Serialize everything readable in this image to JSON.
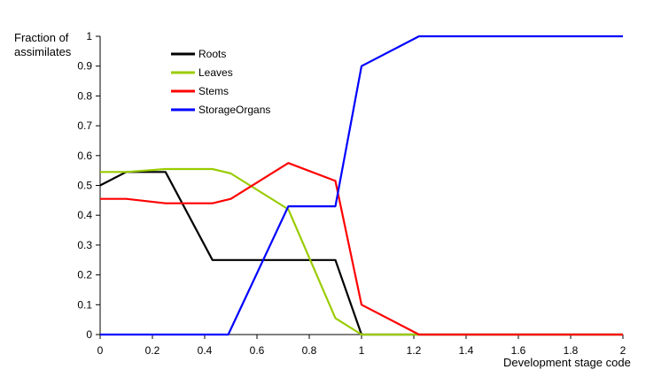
{
  "chart_data": {
    "type": "line",
    "title": "",
    "ylabel_line1": "Fraction of",
    "ylabel_line2": "assimilates",
    "xlabel": "Development stage code",
    "xlim": [
      0,
      2
    ],
    "ylim": [
      0,
      1
    ],
    "x_ticks": [
      "0",
      "0.2",
      "0.4",
      "0.6",
      "0.8",
      "1",
      "1.2",
      "1.4",
      "1.6",
      "1.8",
      "2"
    ],
    "y_ticks": [
      "0",
      "0.1",
      "0.2",
      "0.3",
      "0.4",
      "0.5",
      "0.6",
      "0.7",
      "0.8",
      "0.9",
      "1"
    ],
    "grid": false,
    "legend_position": "top-left",
    "series": [
      {
        "name": "Roots",
        "color": "#000000",
        "x": [
          0,
          0.1,
          0.25,
          0.43,
          0.9,
          1.0,
          2.0
        ],
        "y": [
          0.5,
          0.545,
          0.545,
          0.25,
          0.25,
          0.0,
          0.0
        ]
      },
      {
        "name": "Leaves",
        "color": "#99cc00",
        "x": [
          0,
          0.1,
          0.25,
          0.43,
          0.5,
          0.72,
          0.9,
          1.0,
          2.0
        ],
        "y": [
          0.545,
          0.545,
          0.555,
          0.555,
          0.54,
          0.42,
          0.055,
          0.0,
          0.0
        ]
      },
      {
        "name": "Stems",
        "color": "#ff0000",
        "x": [
          0,
          0.1,
          0.25,
          0.43,
          0.5,
          0.72,
          0.9,
          1.0,
          1.22,
          2.0
        ],
        "y": [
          0.455,
          0.455,
          0.44,
          0.44,
          0.455,
          0.575,
          0.515,
          0.1,
          0.0,
          0.0
        ]
      },
      {
        "name": "StorageOrgans",
        "color": "#0000ff",
        "x": [
          0,
          0.49,
          0.72,
          0.9,
          1.0,
          1.22,
          2.0
        ],
        "y": [
          0.0,
          0.0,
          0.43,
          0.43,
          0.9,
          1.0,
          1.0
        ]
      }
    ]
  }
}
